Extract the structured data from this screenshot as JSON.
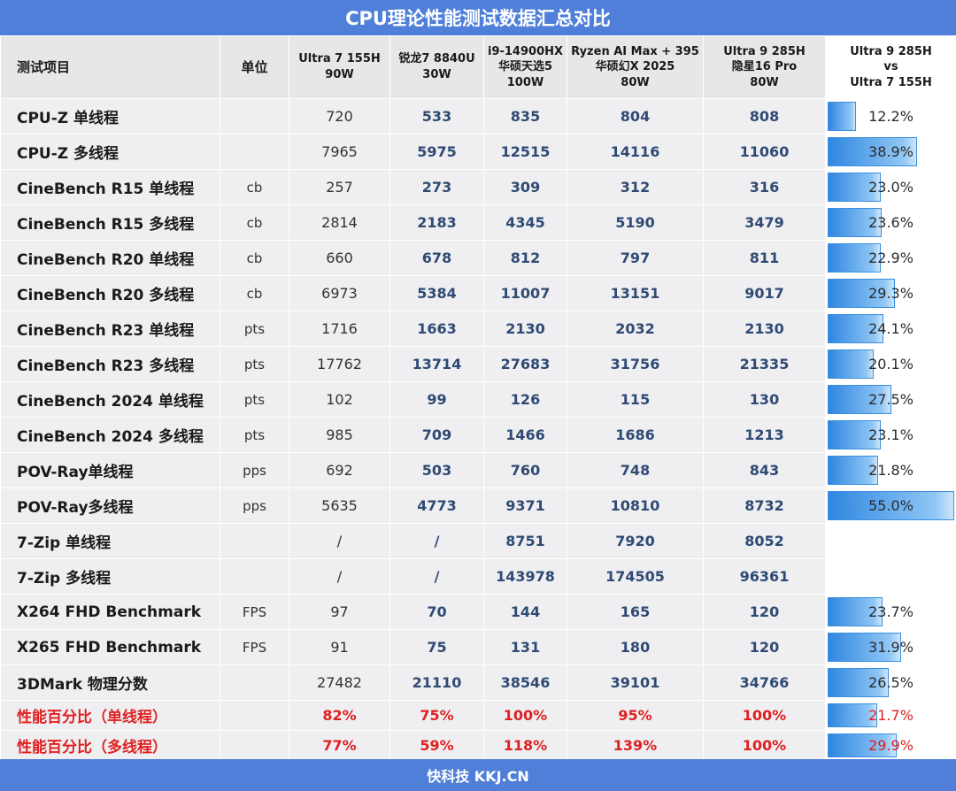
{
  "title": "CPU理论性能测试数据汇总对比",
  "footer": "快科技 KKJ.CN",
  "colors": {
    "header_bar": "#4f7fd8",
    "value_text": "#2f4a73",
    "percent_text": "#e02020",
    "bar": "#2f86e0"
  },
  "chart_data": {
    "type": "table",
    "headers": {
      "item": "测试项目",
      "unit": "单位",
      "cpus": [
        {
          "lines": [
            "Ultra 7 155H",
            "90W"
          ]
        },
        {
          "lines": [
            "锐龙7 8840U",
            "30W"
          ]
        },
        {
          "lines": [
            "i9-14900HX",
            "华硕天选5",
            "100W"
          ]
        },
        {
          "lines": [
            "Ryzen AI Max + 395",
            "华硕幻X 2025",
            "80W"
          ]
        },
        {
          "lines": [
            "Ultra 9 285H",
            "隐星16 Pro",
            "80W"
          ]
        }
      ],
      "ratio": [
        "Ultra 9 285H",
        "vs",
        "Ultra 7 155H"
      ]
    },
    "rows": [
      {
        "item": "CPU-Z 单线程",
        "unit": "",
        "values": [
          "720",
          "533",
          "835",
          "804",
          "808"
        ],
        "ratio": "12.2%",
        "ratio_value": 12.2
      },
      {
        "item": "CPU-Z 多线程",
        "unit": "",
        "values": [
          "7965",
          "5975",
          "12515",
          "14116",
          "11060"
        ],
        "ratio": "38.9%",
        "ratio_value": 38.9
      },
      {
        "item": "CineBench R15 单线程",
        "unit": "cb",
        "values": [
          "257",
          "273",
          "309",
          "312",
          "316"
        ],
        "ratio": "23.0%",
        "ratio_value": 23.0
      },
      {
        "item": "CineBench R15 多线程",
        "unit": "cb",
        "values": [
          "2814",
          "2183",
          "4345",
          "5190",
          "3479"
        ],
        "ratio": "23.6%",
        "ratio_value": 23.6
      },
      {
        "item": "CineBench R20 单线程",
        "unit": "cb",
        "values": [
          "660",
          "678",
          "812",
          "797",
          "811"
        ],
        "ratio": "22.9%",
        "ratio_value": 22.9
      },
      {
        "item": "CineBench R20 多线程",
        "unit": "cb",
        "values": [
          "6973",
          "5384",
          "11007",
          "13151",
          "9017"
        ],
        "ratio": "29.3%",
        "ratio_value": 29.3
      },
      {
        "item": "CineBench R23 单线程",
        "unit": "pts",
        "values": [
          "1716",
          "1663",
          "2130",
          "2032",
          "2130"
        ],
        "ratio": "24.1%",
        "ratio_value": 24.1
      },
      {
        "item": "CineBench R23 多线程",
        "unit": "pts",
        "values": [
          "17762",
          "13714",
          "27683",
          "31756",
          "21335"
        ],
        "ratio": "20.1%",
        "ratio_value": 20.1
      },
      {
        "item": "CineBench 2024 单线程",
        "unit": "pts",
        "values": [
          "102",
          "99",
          "126",
          "115",
          "130"
        ],
        "ratio": "27.5%",
        "ratio_value": 27.5
      },
      {
        "item": "CineBench 2024 多线程",
        "unit": "pts",
        "values": [
          "985",
          "709",
          "1466",
          "1686",
          "1213"
        ],
        "ratio": "23.1%",
        "ratio_value": 23.1
      },
      {
        "item": "POV-Ray单线程",
        "unit": "pps",
        "values": [
          "692",
          "503",
          "760",
          "748",
          "843"
        ],
        "ratio": "21.8%",
        "ratio_value": 21.8
      },
      {
        "item": "POV-Ray多线程",
        "unit": "pps",
        "values": [
          "5635",
          "4773",
          "9371",
          "10810",
          "8732"
        ],
        "ratio": "55.0%",
        "ratio_value": 55.0
      },
      {
        "item": "7-Zip 单线程",
        "unit": "",
        "values": [
          "/",
          "/",
          "8751",
          "7920",
          "8052"
        ],
        "ratio": "",
        "ratio_value": null
      },
      {
        "item": "7-Zip 多线程",
        "unit": "",
        "values": [
          "/",
          "/",
          "143978",
          "174505",
          "96361"
        ],
        "ratio": "",
        "ratio_value": null
      },
      {
        "item": "X264 FHD Benchmark",
        "unit": "FPS",
        "values": [
          "97",
          "70",
          "144",
          "165",
          "120"
        ],
        "ratio": "23.7%",
        "ratio_value": 23.7
      },
      {
        "item": "X265 FHD Benchmark",
        "unit": "FPS",
        "values": [
          "91",
          "75",
          "131",
          "180",
          "120"
        ],
        "ratio": "31.9%",
        "ratio_value": 31.9
      },
      {
        "item": "3DMark 物理分数",
        "unit": "",
        "values": [
          "27482",
          "21110",
          "38546",
          "39101",
          "34766"
        ],
        "ratio": "26.5%",
        "ratio_value": 26.5
      },
      {
        "item": "性能百分比（单线程）",
        "unit": "",
        "values": [
          "82%",
          "75%",
          "100%",
          "95%",
          "100%"
        ],
        "ratio": "21.7%",
        "ratio_value": 21.7,
        "highlight": true
      },
      {
        "item": "性能百分比（多线程）",
        "unit": "",
        "values": [
          "77%",
          "59%",
          "118%",
          "139%",
          "100%"
        ],
        "ratio": "29.9%",
        "ratio_value": 29.9,
        "highlight": true
      }
    ],
    "bar_scale_max": 55.0
  }
}
